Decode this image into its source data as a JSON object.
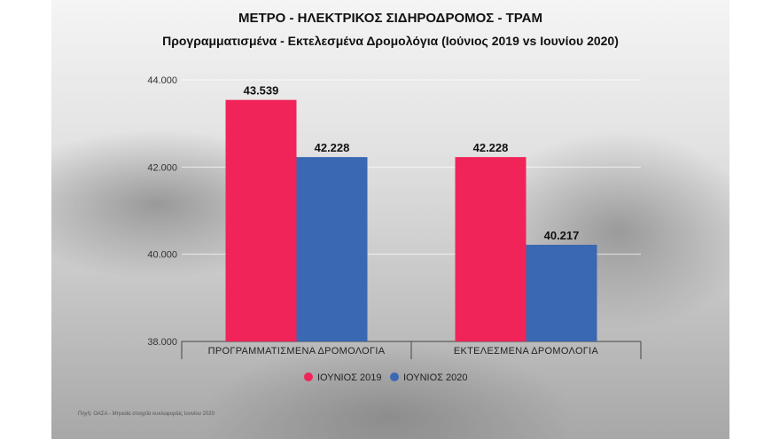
{
  "title": "ΜΕΤΡΟ - ΗΛΕΚΤΡΙΚΟΣ ΣΙΔΗΡΟΔΡΟΜΟΣ - ΤΡΑΜ",
  "subtitle": "Προγραμματισμένα - Εκτελεσμένα Δρομολόγια (Ιούνιος 2019 vs Ιουνίου 2020)",
  "source_note": "Πηγή: ΟΑΣΑ - Μηνιαία στοιχεία κυκλοφορίας Ιουνίου 2020",
  "colors": {
    "series_2019": "#f02458",
    "series_2020": "#3a68b2"
  },
  "chart_data": {
    "type": "bar",
    "title": "ΜΕΤΡΟ - ΗΛΕΚΤΡΙΚΟΣ ΣΙΔΗΡΟΔΡΟΜΟΣ - ΤΡΑΜ",
    "subtitle": "Προγραμματισμένα - Εκτελεσμένα Δρομολόγια (Ιούνιος 2019 vs Ιουνίου 2020)",
    "categories": [
      "ΠΡΟΓΡΑΜΜΑΤΙΣΜΕΝΑ ΔΡΟΜΟΛΟΓΙΑ",
      "ΕΚΤΕΛΕΣΜΕΝΑ ΔΡΟΜΟΛΟΓΙΑ"
    ],
    "series": [
      {
        "name": "ΙΟΥΝΙΟΣ 2019",
        "values": [
          43539,
          42228
        ],
        "labels": [
          "43.539",
          "42.228"
        ],
        "color": "#f02458"
      },
      {
        "name": "ΙΟΥΝΙΟΣ 2020",
        "values": [
          42228,
          40217
        ],
        "labels": [
          "42.228",
          "40.217"
        ],
        "color": "#3a68b2"
      }
    ],
    "ylim": [
      38000,
      44000
    ],
    "yticks": [
      38000,
      40000,
      42000,
      44000
    ],
    "ytick_labels": [
      "38.000",
      "40.000",
      "42.000",
      "44.000"
    ],
    "grid": true,
    "legend": "bottom"
  }
}
